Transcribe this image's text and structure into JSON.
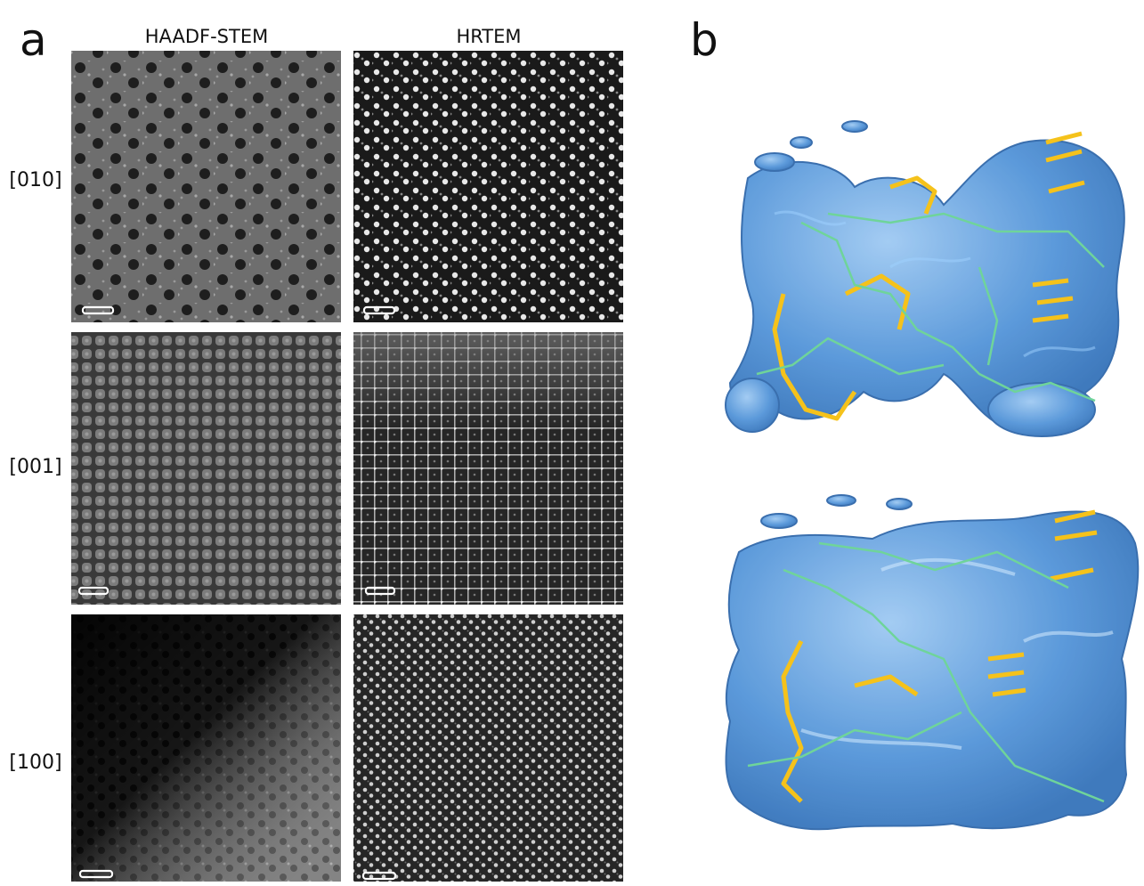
{
  "panel_a": {
    "label": "a",
    "columns": [
      "HAADF-STEM",
      "HRTEM"
    ],
    "rows": [
      "[010]",
      "[001]",
      "[100]"
    ]
  },
  "panel_b": {
    "label": "b"
  }
}
